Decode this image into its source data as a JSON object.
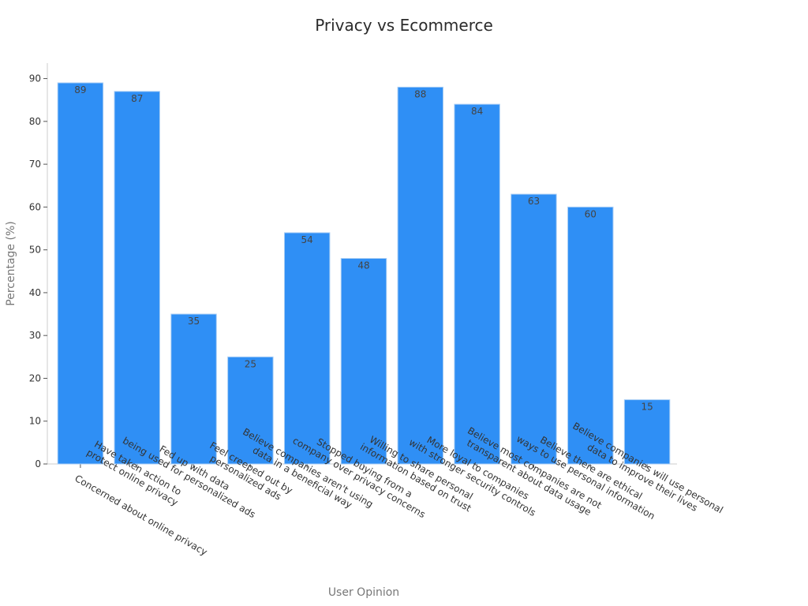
{
  "chart_data": {
    "type": "bar",
    "title": "Privacy vs Ecommerce",
    "xlabel": "User Opinion",
    "ylabel": "Percentage (%)",
    "ylim": [
      0,
      94
    ],
    "yticks": [
      0,
      10,
      20,
      30,
      40,
      50,
      60,
      70,
      80,
      90
    ],
    "categories": [
      [
        "Concerned about online privacy"
      ],
      [
        "Have taken action to",
        "protect online privacy"
      ],
      [
        "Fed up with data",
        "being used for personalized ads"
      ],
      [
        "Feel creeped out by",
        "personalized ads"
      ],
      [
        "Believe companies aren't using",
        "data in a beneficial way"
      ],
      [
        "Stopped buying from a",
        "company over privacy concerns"
      ],
      [
        "Willing to share personal",
        "information based on trust"
      ],
      [
        "More loyal to companies",
        "with stronger security controls"
      ],
      [
        "Believe most companies are not",
        "transparent about data usage"
      ],
      [
        "Believe there are ethical",
        "ways to use personal information"
      ],
      [
        "Believe companies will use personal",
        "data to improve their lives"
      ]
    ],
    "values": [
      89,
      87,
      35,
      25,
      54,
      48,
      88,
      84,
      63,
      60,
      15
    ],
    "bar_color": "#2f8ff5",
    "bar_edge_color": "#a8cdf5",
    "grid": false,
    "legend": "none"
  }
}
